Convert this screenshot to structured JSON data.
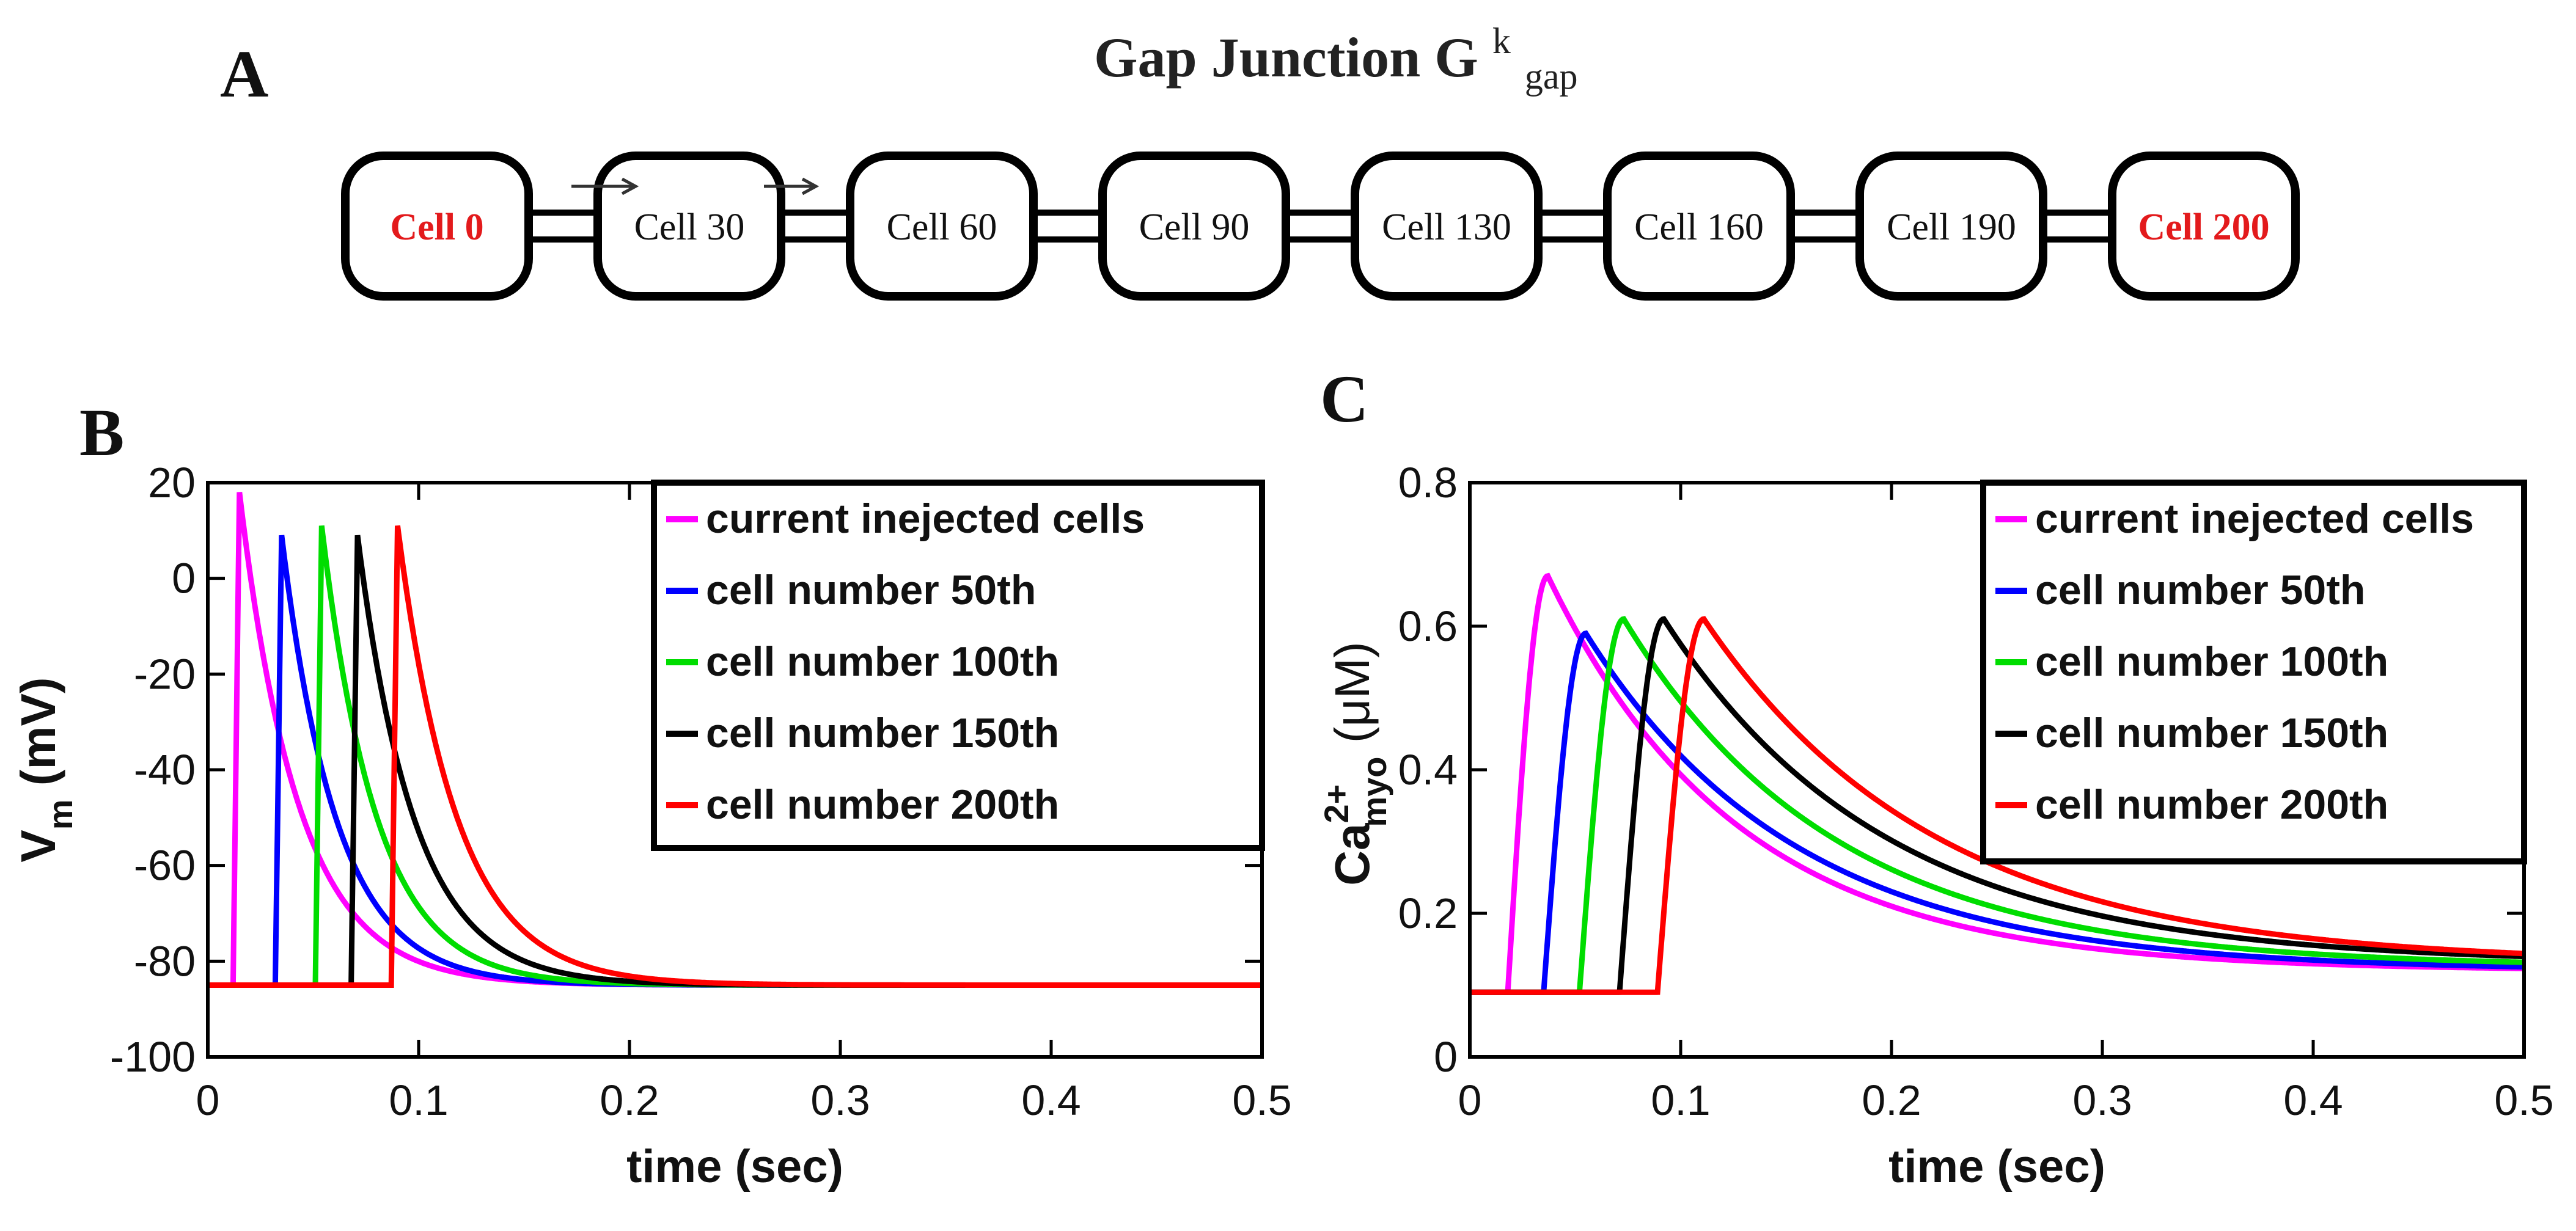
{
  "panel_a": {
    "letter": "A",
    "title_main": "Gap Junction G",
    "title_sup": "k",
    "title_sub": "gap",
    "cells": [
      {
        "label": "Cell 0",
        "color": "#e31a1c"
      },
      {
        "label": "Cell 30",
        "color": "#111111"
      },
      {
        "label": "Cell 60",
        "color": "#111111"
      },
      {
        "label": "Cell 90",
        "color": "#111111"
      },
      {
        "label": "Cell 130",
        "color": "#111111"
      },
      {
        "label": "Cell 160",
        "color": "#111111"
      },
      {
        "label": "Cell 190",
        "color": "#111111"
      },
      {
        "label": "Cell 200",
        "color": "#e31a1c"
      }
    ]
  },
  "panel_b": {
    "letter": "B"
  },
  "panel_c": {
    "letter": "C"
  },
  "colors": {
    "magenta": "#ff00ff",
    "blue": "#0000ff",
    "green": "#00dd00",
    "black": "#000000",
    "red": "#ff0000"
  },
  "chart_data": [
    {
      "type": "line",
      "id": "B",
      "title": "",
      "xlabel": "time (sec)",
      "ylabel_main": "V",
      "ylabel_sub": "m",
      "ylabel_tail": " (mV)",
      "xlim": [
        0,
        0.5
      ],
      "ylim": [
        -100,
        20
      ],
      "xticks": [
        0,
        0.1,
        0.2,
        0.3,
        0.4,
        0.5
      ],
      "xtick_labels": [
        "0",
        "0.1",
        "0.2",
        "0.3",
        "0.4",
        "0.5"
      ],
      "yticks": [
        -100,
        -80,
        -60,
        -40,
        -20,
        0,
        20
      ],
      "ytick_labels": [
        "-100",
        "-80",
        "-60",
        "-40",
        "-20",
        "0",
        "20"
      ],
      "legend_position": "top-right",
      "series": [
        {
          "name": "current inejected cells",
          "color": "#ff00ff",
          "onset": 0.012,
          "peak": 18,
          "rest": -85,
          "tau": 0.028
        },
        {
          "name": "cell number 50th",
          "color": "#0000ff",
          "onset": 0.032,
          "peak": 9,
          "rest": -85,
          "tau": 0.026
        },
        {
          "name": "cell number 100th",
          "color": "#00dd00",
          "onset": 0.051,
          "peak": 11,
          "rest": -85,
          "tau": 0.026
        },
        {
          "name": "cell number 150th",
          "color": "#000000",
          "onset": 0.068,
          "peak": 9,
          "rest": -85,
          "tau": 0.027
        },
        {
          "name": "cell number 200th",
          "color": "#ff0000",
          "onset": 0.087,
          "peak": 11,
          "rest": -85,
          "tau": 0.028
        }
      ]
    },
    {
      "type": "line",
      "id": "C",
      "title": "",
      "xlabel": "time (sec)",
      "ylabel_main": "Ca",
      "ylabel_sup": "2+",
      "ylabel_sub": "myo",
      "ylabel_tail": " (μM)",
      "xlim": [
        0,
        0.5
      ],
      "ylim": [
        0,
        0.8
      ],
      "xticks": [
        0,
        0.1,
        0.2,
        0.3,
        0.4,
        0.5
      ],
      "xtick_labels": [
        "0",
        "0.1",
        "0.2",
        "0.3",
        "0.4",
        "0.5"
      ],
      "yticks": [
        0,
        0.2,
        0.4,
        0.6,
        0.8
      ],
      "ytick_labels": [
        "0",
        "0.2",
        "0.4",
        "0.6",
        "0.8"
      ],
      "legend_position": "top-right",
      "series": [
        {
          "name": "current inejected cells",
          "color": "#ff00ff",
          "onset": 0.018,
          "peak_t": 0.037,
          "peak": 0.67,
          "base": 0.09,
          "end": 0.12,
          "tau": 0.09
        },
        {
          "name": "cell number 50th",
          "color": "#0000ff",
          "onset": 0.035,
          "peak_t": 0.055,
          "peak": 0.59,
          "base": 0.09,
          "end": 0.12,
          "tau": 0.1
        },
        {
          "name": "cell number 100th",
          "color": "#00dd00",
          "onset": 0.052,
          "peak_t": 0.073,
          "peak": 0.61,
          "base": 0.09,
          "end": 0.125,
          "tau": 0.1
        },
        {
          "name": "cell number 150th",
          "color": "#000000",
          "onset": 0.071,
          "peak_t": 0.092,
          "peak": 0.61,
          "base": 0.09,
          "end": 0.13,
          "tau": 0.105
        },
        {
          "name": "cell number 200th",
          "color": "#ff0000",
          "onset": 0.089,
          "peak_t": 0.111,
          "peak": 0.61,
          "base": 0.09,
          "end": 0.13,
          "tau": 0.11
        }
      ]
    }
  ]
}
